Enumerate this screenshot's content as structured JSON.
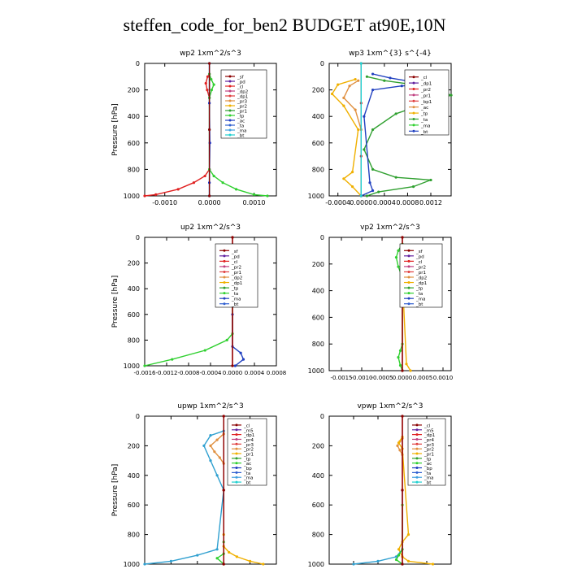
{
  "figure": {
    "title": "steffen_code_for_ben2  BUDGET at90E,10N"
  },
  "chart_data": [
    {
      "type": "line",
      "title": "wp2   1xm^2/s^3",
      "ylabel": "Pressure [hPa]",
      "ylim": [
        1000,
        0
      ],
      "xlim": [
        -0.00145,
        0.0015
      ],
      "xticks": [
        -0.001,
        0.0,
        0.001
      ],
      "xticklabels": [
        "-0.0010",
        "0.0000",
        "0.0010"
      ],
      "yticks": [
        0,
        200,
        400,
        600,
        800,
        1000
      ],
      "legend": [
        "_sf",
        "_pd",
        "_cl",
        "_dp2",
        "_dp1",
        "_pr3",
        "_pr2",
        "_pr1",
        "_tp",
        "_ac",
        "_ta",
        "_ma",
        "_bt"
      ],
      "series": [
        {
          "name": "_dp2",
          "color": "#e02020",
          "x": [
            0,
            -4e-05,
            -8e-05,
            -5e-05,
            0,
            0,
            -0.0001,
            -0.00035,
            -0.0007,
            -0.0012,
            -0.00145
          ],
          "y": [
            80,
            100,
            150,
            200,
            260,
            800,
            850,
            900,
            950,
            990,
            1000
          ]
        },
        {
          "name": "_pr1",
          "color": "#30d030",
          "x": [
            0,
            4e-05,
            0.0001,
            5e-05,
            0,
            0,
            0.0001,
            0.0003,
            0.0006,
            0.001,
            0.0013
          ],
          "y": [
            80,
            120,
            160,
            200,
            260,
            800,
            850,
            900,
            950,
            990,
            1000
          ]
        },
        {
          "name": "_pd",
          "color": "#0020e0",
          "x": [
            0,
            0,
            1e-05,
            0,
            0
          ],
          "y": [
            0,
            300,
            600,
            900,
            1000
          ]
        },
        {
          "name": "_bt",
          "color": "#20d0d0",
          "x": [
            0,
            0,
            0
          ],
          "y": [
            0,
            500,
            1000
          ]
        },
        {
          "name": "_sf",
          "color": "#8b0000",
          "x": [
            0,
            0,
            0
          ],
          "y": [
            0,
            500,
            1000
          ]
        }
      ]
    },
    {
      "type": "line",
      "title": "wp3   1xm^{3} s^{-4}",
      "ylabel": "",
      "ylim": [
        1000,
        0
      ],
      "xlim": [
        -0.00055,
        0.00155
      ],
      "xticks": [
        -0.0004,
        0.0,
        0.0004,
        0.0008,
        0.0012
      ],
      "xticklabels": [
        "-0.0004",
        "0.0000",
        "0.0004",
        "0.0008",
        "0.0012"
      ],
      "yticks": [
        0,
        200,
        400,
        600,
        800,
        1000
      ],
      "legend": [
        "_cl",
        "_dp1",
        "_pr2",
        "_pr1",
        "_bp1",
        "_ac",
        "_tp",
        "_ta",
        "_ma",
        "_bt"
      ],
      "series": [
        {
          "name": "_tp",
          "color": "#30a030",
          "x": [
            0.0001,
            0.0004,
            0.0009,
            0.0013,
            0.00155,
            0.0012,
            0.0006,
            0.0002,
            5e-05,
            0.0002,
            0.0006,
            0.0012,
            0.0009,
            0.0003,
            0.0001
          ],
          "y": [
            100,
            130,
            160,
            200,
            240,
            290,
            380,
            500,
            650,
            800,
            860,
            880,
            930,
            970,
            1000
          ]
        },
        {
          "name": "_pr2",
          "color": "#f0b000",
          "x": [
            -0.0001,
            -0.0004,
            -0.0005,
            -0.0003,
            -5e-05,
            -0.00015,
            -0.0003,
            -0.00015,
            0
          ],
          "y": [
            120,
            160,
            230,
            320,
            500,
            820,
            870,
            930,
            1000
          ]
        },
        {
          "name": "_pr1",
          "color": "#e09040",
          "x": [
            -5e-05,
            -0.0002,
            -0.0003,
            -0.0001,
            0
          ],
          "y": [
            130,
            170,
            260,
            350,
            500
          ]
        },
        {
          "name": "_dp1",
          "color": "#2040c0",
          "x": [
            0.0002,
            0.0005,
            0.0009,
            0.0012,
            0.0007,
            0.0002,
            5e-05,
            0.00015,
            0.0002,
            0
          ],
          "y": [
            80,
            110,
            140,
            160,
            170,
            200,
            400,
            900,
            960,
            1000
          ]
        },
        {
          "name": "_cl",
          "color": "#e02020",
          "x": [
            0,
            0,
            0,
            0
          ],
          "y": [
            0,
            300,
            700,
            1000
          ]
        },
        {
          "name": "_bt",
          "color": "#20d0d0",
          "x": [
            0,
            0
          ],
          "y": [
            0,
            1000
          ]
        }
      ]
    },
    {
      "type": "line",
      "title": "up2   1xm^2/s^3",
      "ylabel": "Pressure [hPa]",
      "ylim": [
        1000,
        0
      ],
      "xlim": [
        -0.0016,
        0.0008
      ],
      "xticks": [
        -0.0016,
        -0.0012,
        -0.0008,
        -0.0004,
        0.0,
        0.0004,
        0.0008
      ],
      "xticklabels": [
        "-0.0016",
        "-0.0012",
        "-0.0008",
        "-0.0004",
        "0.0000",
        "0.0004",
        "0.0008"
      ],
      "yticks": [
        0,
        200,
        400,
        600,
        800,
        1000
      ],
      "legend": [
        "_sf",
        "_pd",
        "_cl",
        "_pr2",
        "_pr1",
        "_dp2",
        "_dp1",
        "_tp",
        "_ta",
        "_ma",
        "_bt"
      ],
      "series": [
        {
          "name": "_dp2",
          "color": "#30d030",
          "x": [
            0,
            -5e-05,
            -0.0001,
            -5e-05,
            0,
            0,
            -0.0001,
            -0.0005,
            -0.0011,
            -0.0016
          ],
          "y": [
            60,
            100,
            150,
            220,
            300,
            750,
            800,
            880,
            950,
            1000
          ]
        },
        {
          "name": "_pr2",
          "color": "#f0b000",
          "x": [
            0,
            3e-05,
            5e-05,
            2e-05,
            0
          ],
          "y": [
            60,
            120,
            170,
            230,
            300
          ]
        },
        {
          "name": "_tp",
          "color": "#2040c0",
          "x": [
            0,
            0,
            0.00015,
            0.0002,
            5e-05
          ],
          "y": [
            600,
            850,
            900,
            950,
            1000
          ]
        },
        {
          "name": "_cl",
          "color": "#e02020",
          "x": [
            0,
            0,
            0
          ],
          "y": [
            0,
            500,
            1000
          ]
        },
        {
          "name": "_sf",
          "color": "#8b0000",
          "x": [
            0,
            0,
            0
          ],
          "y": [
            0,
            500,
            1000
          ]
        }
      ]
    },
    {
      "type": "line",
      "title": "vp2   1xm^2/s^3",
      "ylabel": "",
      "ylim": [
        1000,
        0
      ],
      "xlim": [
        -0.0018,
        0.0012
      ],
      "xticks": [
        -0.0015,
        -0.001,
        -0.0005,
        0.0,
        0.0005,
        0.001
      ],
      "xticklabels": [
        "-0.0015",
        "-0.0010",
        "-0.0005",
        "0.0000",
        "0.0005",
        "0.0010"
      ],
      "yticks": [
        0,
        200,
        400,
        600,
        800,
        1000
      ],
      "legend": [
        "_sf",
        "_pd",
        "_cl",
        "_pr2",
        "_pr1",
        "_dp2",
        "_dp1",
        "_tp",
        "_ta",
        "_ma",
        "_bt"
      ],
      "series": [
        {
          "name": "_dp2",
          "color": "#30d030",
          "x": [
            0,
            -0.0001,
            -0.00015,
            -0.0001,
            0,
            0,
            -5e-05,
            -0.0001,
            -5e-05,
            0
          ],
          "y": [
            50,
            100,
            150,
            220,
            300,
            800,
            850,
            900,
            960,
            1000
          ]
        },
        {
          "name": "_pr2",
          "color": "#f0b000",
          "x": [
            0,
            4e-05,
            2e-05,
            0,
            0.0001,
            0.0002
          ],
          "y": [
            100,
            150,
            200,
            300,
            950,
            1000
          ]
        },
        {
          "name": "_cl",
          "color": "#e02020",
          "x": [
            0,
            0,
            0
          ],
          "y": [
            0,
            500,
            1000
          ]
        },
        {
          "name": "_sf",
          "color": "#8b0000",
          "x": [
            0,
            0,
            0
          ],
          "y": [
            0,
            500,
            1000
          ]
        }
      ]
    },
    {
      "type": "line",
      "title": "upwp   1xm^2/s^3",
      "ylabel": "Pressure [hPa]",
      "ylim": [
        1000,
        0
      ],
      "xlim": [
        -0.0006,
        0.0004
      ],
      "xticks": [
        -0.0006,
        -0.0004,
        -0.0002,
        0.0,
        0.0002,
        0.0004
      ],
      "xticklabels": [
        "-0.00060",
        "-0.00040",
        "-0.00020",
        "0.00000",
        "0.00020",
        "0.00040"
      ],
      "yticks": [
        0,
        200,
        400,
        600,
        800,
        1000
      ],
      "legend": [
        "_cl",
        "_m5",
        "_dp1",
        "_pr4",
        "_pr3",
        "_pr2",
        "_pr1",
        "_tp",
        "_ac",
        "_bp",
        "_ta",
        "_ma",
        "_bt"
      ],
      "series": [
        {
          "name": "_tp",
          "color": "#30a0d0",
          "x": [
            0,
            -0.0001,
            -0.00015,
            -0.0001,
            -5e-05,
            0,
            -5e-05,
            -0.0002,
            -0.0004,
            -0.0006
          ],
          "y": [
            100,
            130,
            200,
            300,
            400,
            500,
            900,
            940,
            980,
            1000
          ]
        },
        {
          "name": "_pr3",
          "color": "#e09040",
          "x": [
            0,
            -5e-05,
            -0.0001,
            -7e-05,
            -3e-05,
            0
          ],
          "y": [
            120,
            160,
            200,
            240,
            280,
            320
          ]
        },
        {
          "name": "_pr2",
          "color": "#f0b000",
          "x": [
            0,
            0,
            4e-05,
            0.0001,
            0.0002,
            0.0003
          ],
          "y": [
            800,
            880,
            920,
            950,
            980,
            1000
          ]
        },
        {
          "name": "_ac",
          "color": "#30d030",
          "x": [
            0,
            0,
            -5e-05,
            0
          ],
          "y": [
            850,
            930,
            960,
            1000
          ]
        },
        {
          "name": "_cl",
          "color": "#e02020",
          "x": [
            0,
            0,
            0
          ],
          "y": [
            0,
            500,
            1000
          ]
        },
        {
          "name": "_m5",
          "color": "#8b0000",
          "x": [
            0,
            0,
            0
          ],
          "y": [
            0,
            500,
            1000
          ]
        }
      ]
    },
    {
      "type": "line",
      "title": "vpwp   1xm^2/s^3",
      "ylabel": "",
      "ylim": [
        1000,
        0
      ],
      "xlim": [
        -0.0006,
        0.0004
      ],
      "xticks": [
        -0.0006,
        -0.0004,
        -0.0002,
        0.0,
        0.0002,
        0.0004
      ],
      "xticklabels": [
        "-0.00060",
        "-0.00040",
        "-0.00020",
        "0.00000",
        "0.00020",
        "0.00040"
      ],
      "yticks": [
        0,
        200,
        400,
        600,
        800,
        1000
      ],
      "legend": [
        "_cl",
        "_m5",
        "_dp1",
        "_pr4",
        "_pr3",
        "_pr2",
        "_pr1",
        "_tp",
        "_ac",
        "_bp",
        "_ta",
        "_ma",
        "_bt"
      ],
      "series": [
        {
          "name": "_pr3",
          "color": "#e09040",
          "x": [
            0,
            -2e-05,
            -4e-05,
            -2e-05,
            0
          ],
          "y": [
            150,
            170,
            200,
            230,
            260
          ]
        },
        {
          "name": "_pr2",
          "color": "#f0b000",
          "x": [
            0,
            -3e-05,
            0,
            5e-05,
            0,
            -3e-05,
            0,
            5e-05,
            0.00025
          ],
          "y": [
            140,
            180,
            220,
            800,
            850,
            900,
            950,
            980,
            1000
          ]
        },
        {
          "name": "_tp",
          "color": "#30a0d0",
          "x": [
            0,
            0,
            -5e-05,
            -0.0002,
            -0.0004
          ],
          "y": [
            500,
            900,
            950,
            980,
            1000
          ]
        },
        {
          "name": "_ac",
          "color": "#30d030",
          "x": [
            0,
            0,
            -3e-05,
            -5e-05,
            0
          ],
          "y": [
            600,
            900,
            940,
            970,
            1000
          ]
        },
        {
          "name": "_cl",
          "color": "#e02020",
          "x": [
            0,
            0,
            0
          ],
          "y": [
            0,
            500,
            1000
          ]
        },
        {
          "name": "_m5",
          "color": "#8b0000",
          "x": [
            0,
            0,
            0
          ],
          "y": [
            0,
            500,
            1000
          ]
        }
      ]
    }
  ]
}
